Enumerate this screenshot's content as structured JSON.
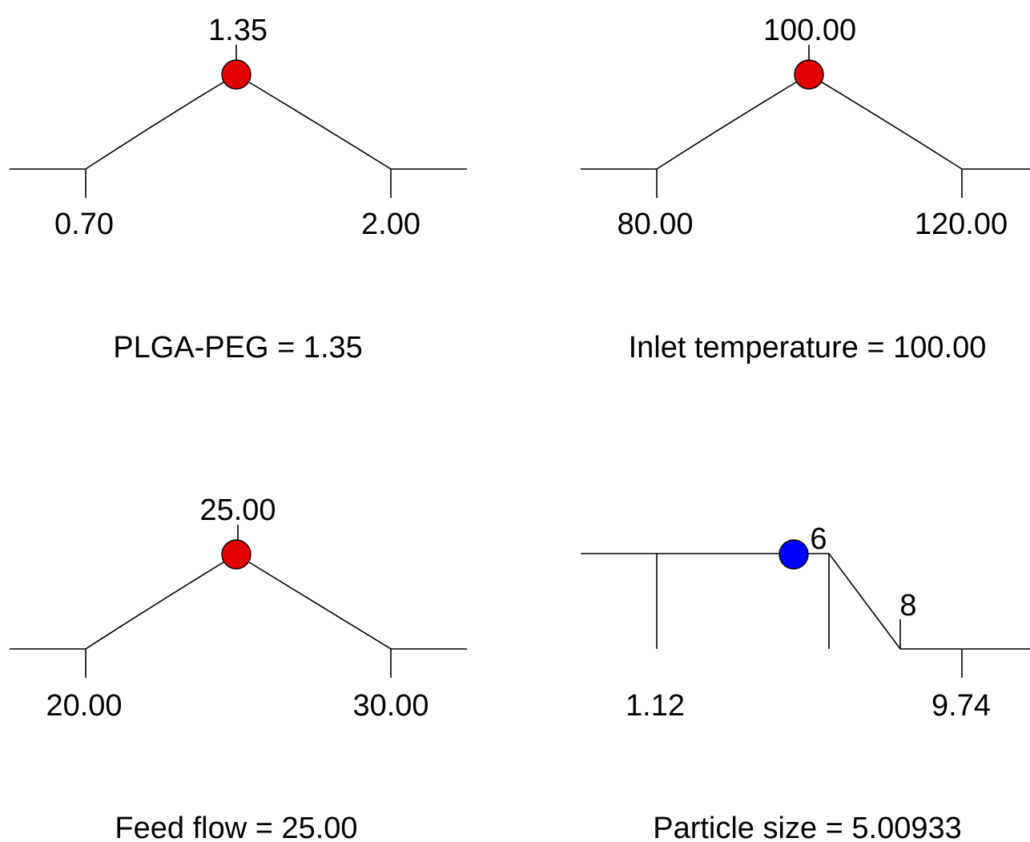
{
  "chart_data": [
    {
      "type": "line",
      "name": "PLGA-PEG",
      "caption": "PLGA-PEG = 1.35",
      "low": 0.7,
      "high": 2.0,
      "current": 1.35,
      "low_label": "0.70",
      "high_label": "2.00",
      "current_label": "1.35",
      "shape": "triangle",
      "marker_color": "#e00000"
    },
    {
      "type": "line",
      "name": "Inlet temperature",
      "caption": "Inlet temperature = 100.00",
      "low": 80.0,
      "high": 120.0,
      "current": 100.0,
      "low_label": "80.00",
      "high_label": "120.00",
      "current_label": "100.00",
      "shape": "triangle",
      "marker_color": "#e00000"
    },
    {
      "type": "line",
      "name": "Feed flow",
      "caption": "Feed flow = 25.00",
      "low": 20.0,
      "high": 30.0,
      "current": 25.0,
      "low_label": "20.00",
      "high_label": "30.00",
      "current_label": "25.00",
      "shape": "triangle",
      "marker_color": "#e00000"
    },
    {
      "type": "line",
      "name": "Particle size",
      "caption": "Particle size = 5.00933",
      "low": 1.12,
      "high": 9.74,
      "current": 5.00933,
      "low_label": "1.12",
      "high_label": "9.74",
      "target": 6,
      "upper_limit": 8,
      "target_label": "6",
      "upper_limit_label": "8",
      "shape": "decreasing",
      "marker_color": "#0000ff"
    }
  ]
}
